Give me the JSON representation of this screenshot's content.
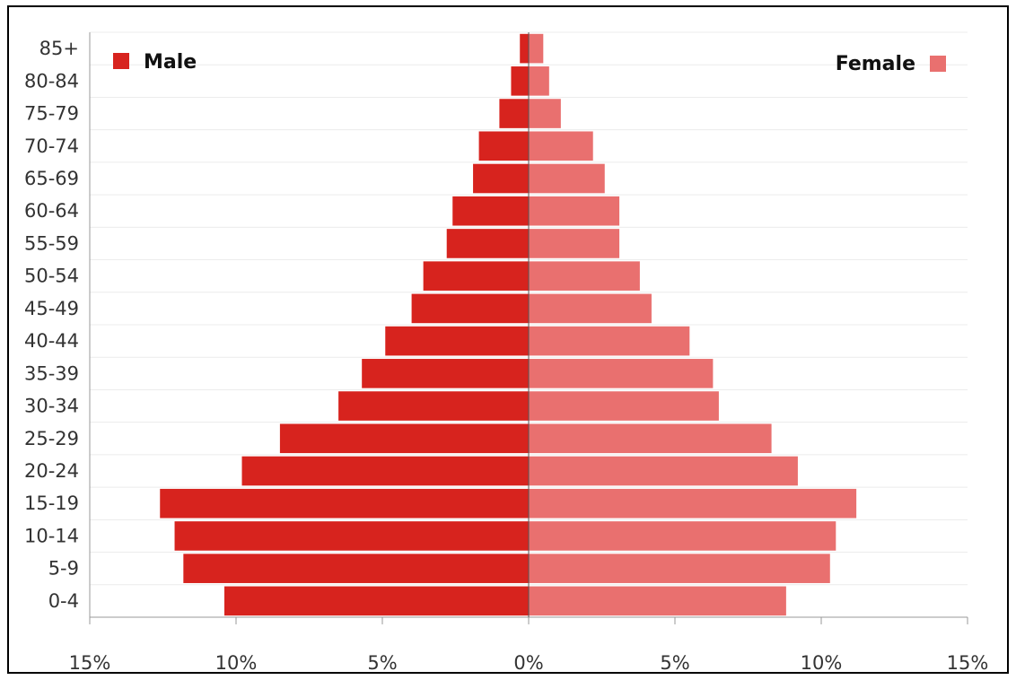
{
  "chart_data": {
    "type": "bar",
    "orientation": "horizontal",
    "categories": [
      "0-4",
      "5-9",
      "10-14",
      "15-19",
      "20-24",
      "25-29",
      "30-34",
      "35-39",
      "40-44",
      "45-49",
      "50-54",
      "55-59",
      "60-64",
      "65-69",
      "70-74",
      "75-79",
      "80-84",
      "85+"
    ],
    "series": [
      {
        "name": "Male",
        "values": [
          10.4,
          11.8,
          12.1,
          12.6,
          9.8,
          8.5,
          6.5,
          5.7,
          4.9,
          4.0,
          3.6,
          2.8,
          2.6,
          1.9,
          1.7,
          1.0,
          0.6,
          0.3
        ],
        "color": "#d7231e"
      },
      {
        "name": "Female",
        "values": [
          8.8,
          10.3,
          10.5,
          11.2,
          9.2,
          8.3,
          6.5,
          6.3,
          5.5,
          4.2,
          3.8,
          3.1,
          3.1,
          2.6,
          2.2,
          1.1,
          0.7,
          0.5
        ],
        "color": "#e9706f"
      }
    ],
    "xlim": [
      -15,
      15
    ],
    "x_ticks": [
      -15,
      -10,
      -5,
      0,
      5,
      10,
      15
    ],
    "x_tick_labels": [
      "15%",
      "10%",
      "5%",
      "0%",
      "5%",
      "10%",
      "15%"
    ],
    "title": "",
    "xlabel": "",
    "ylabel": "",
    "grid": true,
    "legend": {
      "male_position": "top-left",
      "female_position": "top-right"
    }
  }
}
